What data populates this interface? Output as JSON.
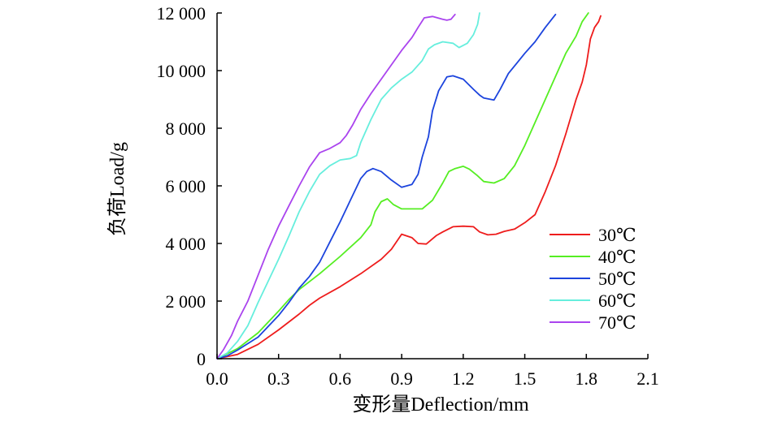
{
  "chart_data": {
    "type": "line",
    "xlabel": "变形量Deflection/mm",
    "ylabel": "负荷Load/g",
    "xlim": [
      0,
      2.1
    ],
    "ylim": [
      0,
      12000
    ],
    "xticks": [
      {
        "value": 0.0,
        "label": "0.0"
      },
      {
        "value": 0.3,
        "label": "0.3"
      },
      {
        "value": 0.6,
        "label": "0.6"
      },
      {
        "value": 0.9,
        "label": "0.9"
      },
      {
        "value": 1.2,
        "label": "1.2"
      },
      {
        "value": 1.5,
        "label": "1.5"
      },
      {
        "value": 1.8,
        "label": "1.8"
      },
      {
        "value": 2.1,
        "label": "2.1"
      }
    ],
    "yticks": [
      {
        "value": 0,
        "label": "0"
      },
      {
        "value": 2000,
        "label": "2 000"
      },
      {
        "value": 4000,
        "label": "4 000"
      },
      {
        "value": 6000,
        "label": "6 000"
      },
      {
        "value": 8000,
        "label": "8 000"
      },
      {
        "value": 10000,
        "label": "10 000"
      },
      {
        "value": 12000,
        "label": "12 000"
      }
    ],
    "grid": false,
    "legend_position": "right",
    "series": [
      {
        "name": "30℃",
        "color": "#ee1c1c",
        "points": [
          [
            0,
            0
          ],
          [
            0.1,
            150
          ],
          [
            0.2,
            500
          ],
          [
            0.3,
            1000
          ],
          [
            0.4,
            1550
          ],
          [
            0.45,
            1850
          ],
          [
            0.5,
            2100
          ],
          [
            0.6,
            2500
          ],
          [
            0.7,
            2950
          ],
          [
            0.8,
            3450
          ],
          [
            0.85,
            3800
          ],
          [
            0.9,
            4320
          ],
          [
            0.95,
            4200
          ],
          [
            0.98,
            4000
          ],
          [
            1.02,
            3980
          ],
          [
            1.07,
            4280
          ],
          [
            1.1,
            4400
          ],
          [
            1.15,
            4580
          ],
          [
            1.2,
            4600
          ],
          [
            1.25,
            4580
          ],
          [
            1.28,
            4400
          ],
          [
            1.32,
            4300
          ],
          [
            1.36,
            4320
          ],
          [
            1.4,
            4420
          ],
          [
            1.45,
            4500
          ],
          [
            1.5,
            4720
          ],
          [
            1.55,
            5000
          ],
          [
            1.6,
            5800
          ],
          [
            1.65,
            6700
          ],
          [
            1.7,
            7800
          ],
          [
            1.75,
            9000
          ],
          [
            1.78,
            9600
          ],
          [
            1.8,
            10200
          ],
          [
            1.82,
            11100
          ],
          [
            1.84,
            11500
          ],
          [
            1.86,
            11700
          ],
          [
            1.87,
            11900
          ]
        ]
      },
      {
        "name": "40℃",
        "color": "#55ee22",
        "points": [
          [
            0,
            0
          ],
          [
            0.1,
            350
          ],
          [
            0.2,
            900
          ],
          [
            0.3,
            1650
          ],
          [
            0.35,
            2050
          ],
          [
            0.4,
            2400
          ],
          [
            0.5,
            2950
          ],
          [
            0.6,
            3550
          ],
          [
            0.7,
            4200
          ],
          [
            0.75,
            4650
          ],
          [
            0.77,
            5100
          ],
          [
            0.8,
            5450
          ],
          [
            0.83,
            5550
          ],
          [
            0.86,
            5350
          ],
          [
            0.9,
            5200
          ],
          [
            1.0,
            5200
          ],
          [
            1.05,
            5500
          ],
          [
            1.1,
            6100
          ],
          [
            1.13,
            6500
          ],
          [
            1.16,
            6600
          ],
          [
            1.2,
            6680
          ],
          [
            1.23,
            6580
          ],
          [
            1.27,
            6350
          ],
          [
            1.3,
            6150
          ],
          [
            1.35,
            6100
          ],
          [
            1.4,
            6250
          ],
          [
            1.45,
            6700
          ],
          [
            1.5,
            7400
          ],
          [
            1.55,
            8200
          ],
          [
            1.6,
            9000
          ],
          [
            1.65,
            9800
          ],
          [
            1.7,
            10600
          ],
          [
            1.75,
            11200
          ],
          [
            1.78,
            11700
          ],
          [
            1.81,
            12000
          ]
        ]
      },
      {
        "name": "50℃",
        "color": "#1c44dd",
        "points": [
          [
            0,
            0
          ],
          [
            0.05,
            100
          ],
          [
            0.1,
            300
          ],
          [
            0.2,
            750
          ],
          [
            0.3,
            1500
          ],
          [
            0.35,
            1950
          ],
          [
            0.4,
            2450
          ],
          [
            0.45,
            2850
          ],
          [
            0.5,
            3350
          ],
          [
            0.55,
            4050
          ],
          [
            0.6,
            4750
          ],
          [
            0.65,
            5500
          ],
          [
            0.7,
            6250
          ],
          [
            0.73,
            6500
          ],
          [
            0.76,
            6600
          ],
          [
            0.8,
            6500
          ],
          [
            0.85,
            6200
          ],
          [
            0.9,
            5950
          ],
          [
            0.95,
            6050
          ],
          [
            0.98,
            6400
          ],
          [
            1.0,
            7000
          ],
          [
            1.03,
            7700
          ],
          [
            1.05,
            8600
          ],
          [
            1.08,
            9300
          ],
          [
            1.12,
            9780
          ],
          [
            1.15,
            9820
          ],
          [
            1.2,
            9700
          ],
          [
            1.25,
            9350
          ],
          [
            1.28,
            9150
          ],
          [
            1.3,
            9050
          ],
          [
            1.35,
            8980
          ],
          [
            1.38,
            9350
          ],
          [
            1.42,
            9900
          ],
          [
            1.5,
            10600
          ],
          [
            1.55,
            11000
          ],
          [
            1.6,
            11500
          ],
          [
            1.65,
            11950
          ]
        ]
      },
      {
        "name": "60℃",
        "color": "#66eedd",
        "points": [
          [
            0,
            0
          ],
          [
            0.05,
            200
          ],
          [
            0.1,
            600
          ],
          [
            0.15,
            1150
          ],
          [
            0.2,
            1950
          ],
          [
            0.25,
            2700
          ],
          [
            0.3,
            3450
          ],
          [
            0.35,
            4250
          ],
          [
            0.4,
            5100
          ],
          [
            0.45,
            5800
          ],
          [
            0.5,
            6400
          ],
          [
            0.55,
            6700
          ],
          [
            0.6,
            6900
          ],
          [
            0.65,
            6950
          ],
          [
            0.68,
            7050
          ],
          [
            0.7,
            7500
          ],
          [
            0.75,
            8300
          ],
          [
            0.8,
            9000
          ],
          [
            0.85,
            9400
          ],
          [
            0.9,
            9700
          ],
          [
            0.95,
            9950
          ],
          [
            1.0,
            10350
          ],
          [
            1.03,
            10750
          ],
          [
            1.06,
            10900
          ],
          [
            1.1,
            11000
          ],
          [
            1.15,
            10950
          ],
          [
            1.18,
            10800
          ],
          [
            1.22,
            10950
          ],
          [
            1.25,
            11250
          ],
          [
            1.27,
            11600
          ],
          [
            1.28,
            12000
          ]
        ]
      },
      {
        "name": "70℃",
        "color": "#aa44ee",
        "points": [
          [
            0,
            0
          ],
          [
            0.03,
            300
          ],
          [
            0.07,
            800
          ],
          [
            0.1,
            1300
          ],
          [
            0.15,
            2000
          ],
          [
            0.2,
            2900
          ],
          [
            0.25,
            3800
          ],
          [
            0.3,
            4600
          ],
          [
            0.35,
            5300
          ],
          [
            0.4,
            6000
          ],
          [
            0.45,
            6650
          ],
          [
            0.5,
            7150
          ],
          [
            0.55,
            7300
          ],
          [
            0.6,
            7500
          ],
          [
            0.63,
            7750
          ],
          [
            0.66,
            8100
          ],
          [
            0.7,
            8650
          ],
          [
            0.75,
            9200
          ],
          [
            0.8,
            9700
          ],
          [
            0.85,
            10200
          ],
          [
            0.9,
            10700
          ],
          [
            0.95,
            11150
          ],
          [
            0.98,
            11500
          ],
          [
            1.01,
            11830
          ],
          [
            1.05,
            11880
          ],
          [
            1.1,
            11780
          ],
          [
            1.12,
            11750
          ],
          [
            1.14,
            11780
          ],
          [
            1.16,
            11950
          ]
        ]
      }
    ]
  }
}
